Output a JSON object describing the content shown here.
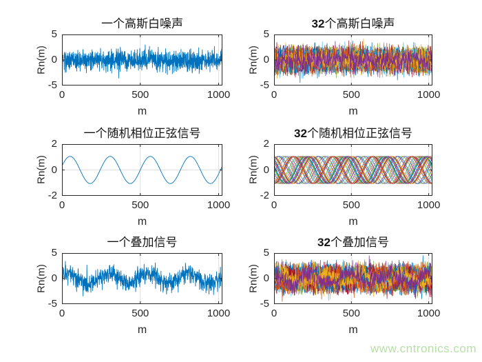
{
  "watermark": "www.cntronics.com",
  "style": {
    "background": "#ffffff",
    "axis_color": "#262626",
    "grid_color": "#e0e0e0",
    "single_line_color": "#0072BD",
    "watermark_color": "#b6dfa6",
    "matlab_palette": [
      "#0072BD",
      "#D95319",
      "#EDB120",
      "#7E2F8E",
      "#77AC30",
      "#4DBEEE",
      "#A2142F"
    ]
  },
  "chart_data": [
    {
      "type": "line",
      "title_bold": "",
      "title_text": "一个高斯白噪声",
      "xlabel": "m",
      "ylabel": "Rn(m)",
      "xlim": [
        0,
        1024
      ],
      "ylim": [
        -5,
        5
      ],
      "xticks": [
        0,
        500,
        1000
      ],
      "yticks": [
        -5,
        0,
        5
      ],
      "grid": true,
      "series_count": 1,
      "points": 1024,
      "signal": {
        "kind": "gaussian-noise",
        "sigma": 1.05
      },
      "colors": [
        "#0072BD"
      ],
      "seed": 101
    },
    {
      "type": "line",
      "title_bold": "32",
      "title_text": "个高斯白噪声",
      "xlabel": "m",
      "ylabel": "Rn(m)",
      "xlim": [
        0,
        1024
      ],
      "ylim": [
        -5,
        5
      ],
      "xticks": [
        0,
        500,
        1000
      ],
      "yticks": [
        -5,
        0,
        5
      ],
      "grid": true,
      "series_count": 32,
      "points": 640,
      "signal": {
        "kind": "gaussian-noise",
        "sigma": 1.05
      },
      "colors": [
        "#0072BD",
        "#D95319",
        "#EDB120",
        "#7E2F8E",
        "#77AC30",
        "#4DBEEE",
        "#A2142F"
      ],
      "seed": 202
    },
    {
      "type": "line",
      "title_bold": "",
      "title_text": "一个随机相位正弦信号",
      "xlabel": "m",
      "ylabel": "Rn(m)",
      "xlim": [
        0,
        1024
      ],
      "ylim": [
        -2,
        2
      ],
      "xticks": [
        0,
        500,
        1000
      ],
      "yticks": [
        -2,
        0,
        2
      ],
      "grid": true,
      "series_count": 1,
      "points": 512,
      "signal": {
        "kind": "sine",
        "amplitude": 1.05,
        "period": 256,
        "phase": 0.3
      },
      "colors": [
        "#0072BD"
      ],
      "seed": 303
    },
    {
      "type": "line",
      "title_bold": "32",
      "title_text": "个随机相位正弦信号",
      "xlabel": "m",
      "ylabel": "Rn(m)",
      "xlim": [
        0,
        1024
      ],
      "ylim": [
        -2,
        2
      ],
      "xticks": [
        0,
        500,
        1000
      ],
      "yticks": [
        -2,
        0,
        2
      ],
      "grid": true,
      "series_count": 32,
      "points": 256,
      "signal": {
        "kind": "sine",
        "amplitude": 1.05,
        "period": 256,
        "phase": "random"
      },
      "colors": [
        "#0072BD",
        "#D95319",
        "#EDB120",
        "#7E2F8E",
        "#77AC30",
        "#4DBEEE",
        "#A2142F"
      ],
      "seed": 404
    },
    {
      "type": "line",
      "title_bold": "",
      "title_text": "一个叠加信号",
      "xlabel": "m",
      "ylabel": "Rn(m)",
      "xlim": [
        0,
        1024
      ],
      "ylim": [
        -5,
        5
      ],
      "xticks": [
        0,
        500,
        1000
      ],
      "yticks": [
        -5,
        0,
        5
      ],
      "grid": true,
      "series_count": 1,
      "points": 800,
      "signal": {
        "kind": "sine-plus-noise",
        "amplitude": 1.0,
        "period": 256,
        "phase": 0.5,
        "sigma": 0.95
      },
      "colors": [
        "#0072BD"
      ],
      "seed": 505
    },
    {
      "type": "line",
      "title_bold": "32",
      "title_text": "个叠加信号",
      "xlabel": "m",
      "ylabel": "Rn(m)",
      "xlim": [
        0,
        1024
      ],
      "ylim": [
        -5,
        5
      ],
      "xticks": [
        0,
        500,
        1000
      ],
      "yticks": [
        -5,
        0,
        5
      ],
      "grid": true,
      "series_count": 32,
      "points": 640,
      "signal": {
        "kind": "sine-plus-noise",
        "amplitude": 1.0,
        "period": 256,
        "phase": "random",
        "sigma": 0.95
      },
      "colors": [
        "#0072BD",
        "#D95319",
        "#EDB120",
        "#7E2F8E",
        "#77AC30",
        "#4DBEEE",
        "#A2142F"
      ],
      "seed": 606
    }
  ]
}
